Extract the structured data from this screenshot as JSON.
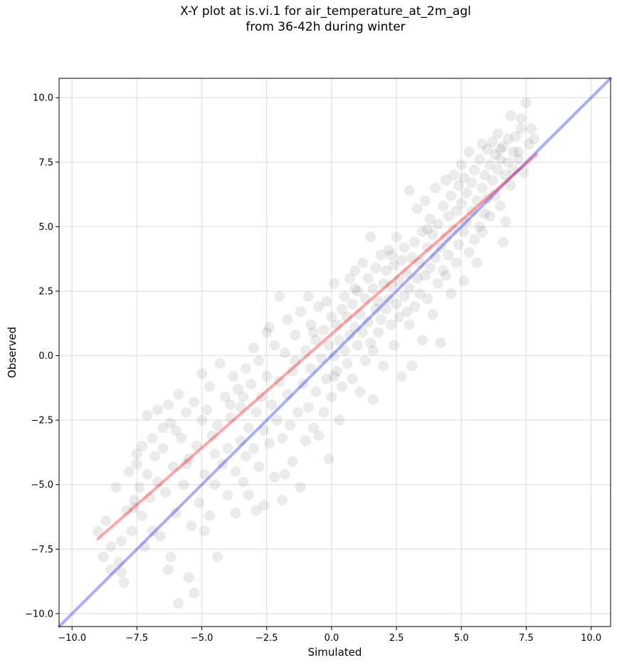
{
  "title_line1": "X-Y plot at is.vi.1 for air_temperature_at_2m_agl",
  "title_line2": "from 36-42h during winter",
  "chart_data": {
    "type": "scatter",
    "xlabel": "Simulated",
    "ylabel": "Observed",
    "xlim": [
      -10.5,
      10.75
    ],
    "ylim": [
      -10.5,
      10.75
    ],
    "xticks": [
      "−10.0",
      "−7.5",
      "−5.0",
      "−2.5",
      "0.0",
      "2.5",
      "5.0",
      "7.5",
      "10.0"
    ],
    "yticks": [
      "−10.0",
      "−7.5",
      "−5.0",
      "−2.5",
      "0.0",
      "2.5",
      "5.0",
      "7.5",
      "10.0"
    ],
    "grid": true,
    "point_color": "#000000",
    "point_opacity": 0.08,
    "identity_line": {
      "color": "#0000ff",
      "from": [
        -10.5,
        -10.5
      ],
      "to": [
        10.75,
        10.75
      ]
    },
    "fit_line": {
      "color": "#ff0000",
      "from": [
        -9.0,
        -7.1
      ],
      "to": [
        7.9,
        7.8
      ]
    },
    "points": [
      [
        -9.0,
        -6.8
      ],
      [
        -8.8,
        -7.8
      ],
      [
        -8.7,
        -6.4
      ],
      [
        -8.5,
        -8.3
      ],
      [
        -8.5,
        -7.4
      ],
      [
        -8.3,
        -5.1
      ],
      [
        -8.2,
        -8.0
      ],
      [
        -8.1,
        -8.4
      ],
      [
        -8.1,
        -7.2
      ],
      [
        -8.0,
        -8.8
      ],
      [
        -7.9,
        -6.0
      ],
      [
        -7.8,
        -4.5
      ],
      [
        -7.7,
        -6.8
      ],
      [
        -7.6,
        -5.6
      ],
      [
        -7.5,
        -3.8
      ],
      [
        -7.5,
        -4.2
      ],
      [
        -7.4,
        -5.1
      ],
      [
        -7.3,
        -3.5
      ],
      [
        -7.3,
        -6.2
      ],
      [
        -7.2,
        -7.4
      ],
      [
        -7.1,
        -2.3
      ],
      [
        -7.1,
        -4.6
      ],
      [
        -7.0,
        -5.5
      ],
      [
        -6.9,
        -6.8
      ],
      [
        -6.8,
        -3.9
      ],
      [
        -6.7,
        -4.9
      ],
      [
        -6.7,
        -2.1
      ],
      [
        -6.6,
        -7.0
      ],
      [
        -6.5,
        -2.8
      ],
      [
        -6.5,
        -3.6
      ],
      [
        -6.4,
        -5.3
      ],
      [
        -6.3,
        -8.3
      ],
      [
        -6.3,
        -1.9
      ],
      [
        -6.2,
        -2.6
      ],
      [
        -6.2,
        -7.8
      ],
      [
        -6.1,
        -4.3
      ],
      [
        -6.0,
        -6.1
      ],
      [
        -5.9,
        -9.6
      ],
      [
        -5.9,
        -1.5
      ],
      [
        -5.8,
        -3.2
      ],
      [
        -5.7,
        -5.0
      ],
      [
        -5.6,
        -2.2
      ],
      [
        -5.5,
        -8.6
      ],
      [
        -5.5,
        -4.0
      ],
      [
        -5.4,
        -6.6
      ],
      [
        -5.3,
        -1.8
      ],
      [
        -5.3,
        -9.2
      ],
      [
        -5.2,
        -3.5
      ],
      [
        -5.1,
        -5.7
      ],
      [
        -5.0,
        -2.5
      ],
      [
        -5.0,
        -0.7
      ],
      [
        -4.9,
        -4.6
      ],
      [
        -4.8,
        -2.1
      ],
      [
        -4.7,
        -6.2
      ],
      [
        -4.7,
        -1.2
      ],
      [
        -4.6,
        -3.1
      ],
      [
        -4.5,
        -5.0
      ],
      [
        -4.4,
        -2.7
      ],
      [
        -4.4,
        -7.8
      ],
      [
        -4.3,
        -0.3
      ],
      [
        -4.2,
        -4.2
      ],
      [
        -4.1,
        -1.6
      ],
      [
        -4.0,
        -5.4
      ],
      [
        -4.0,
        -3.6
      ],
      [
        -3.9,
        -2.4
      ],
      [
        -3.8,
        -0.8
      ],
      [
        -3.7,
        -4.5
      ],
      [
        -3.7,
        -6.1
      ],
      [
        -3.6,
        -1.3
      ],
      [
        -3.5,
        -2.0
      ],
      [
        -3.5,
        -3.3
      ],
      [
        -3.4,
        -1.6
      ],
      [
        -3.4,
        -4.9
      ],
      [
        -3.3,
        -0.5
      ],
      [
        -3.2,
        -2.8
      ],
      [
        -3.2,
        -5.4
      ],
      [
        -3.1,
        -1.1
      ],
      [
        -3.0,
        0.3
      ],
      [
        -3.0,
        -3.6
      ],
      [
        -2.9,
        -2.2
      ],
      [
        -2.8,
        -0.2
      ],
      [
        -2.8,
        -4.3
      ],
      [
        -2.7,
        -1.6
      ],
      [
        -2.6,
        -2.9
      ],
      [
        -2.6,
        -5.8
      ],
      [
        -2.5,
        -0.8
      ],
      [
        -2.4,
        1.1
      ],
      [
        -2.4,
        -3.4
      ],
      [
        -2.3,
        -1.9
      ],
      [
        -2.2,
        0.4
      ],
      [
        -2.2,
        -4.7
      ],
      [
        -2.1,
        -2.5
      ],
      [
        -2.0,
        -1.0
      ],
      [
        -2.0,
        2.3
      ],
      [
        -1.9,
        -3.2
      ],
      [
        -1.9,
        -5.6
      ],
      [
        -1.8,
        0.1
      ],
      [
        -1.7,
        -1.5
      ],
      [
        -1.7,
        1.4
      ],
      [
        -1.6,
        -2.7
      ],
      [
        -1.5,
        -4.1
      ],
      [
        -1.5,
        -0.6
      ],
      [
        -1.4,
        0.8
      ],
      [
        -1.3,
        -2.2
      ],
      [
        -1.2,
        -5.1
      ],
      [
        -1.2,
        1.7
      ],
      [
        -1.1,
        -1.1
      ],
      [
        -1.0,
        -3.3
      ],
      [
        -1.0,
        0.2
      ],
      [
        -0.9,
        2.3
      ],
      [
        -0.9,
        -2.0
      ],
      [
        -0.8,
        -0.5
      ],
      [
        -0.8,
        1.2
      ],
      [
        -0.7,
        -2.8
      ],
      [
        -0.6,
        0.6
      ],
      [
        -0.6,
        -1.4
      ],
      [
        -0.5,
        1.9
      ],
      [
        -0.5,
        -3.1
      ],
      [
        -0.4,
        -0.1
      ],
      [
        -0.3,
        1.0
      ],
      [
        -0.3,
        -2.2
      ],
      [
        -0.2,
        2.1
      ],
      [
        -0.2,
        -0.9
      ],
      [
        -0.1,
        0.4
      ],
      [
        -0.1,
        -4.0
      ],
      [
        0.0,
        1.5
      ],
      [
        0.0,
        -1.6
      ],
      [
        0.1,
        0.0
      ],
      [
        0.1,
        2.8
      ],
      [
        0.2,
        -0.6
      ],
      [
        0.2,
        1.2
      ],
      [
        0.3,
        -2.5
      ],
      [
        0.3,
        0.6
      ],
      [
        0.4,
        1.8
      ],
      [
        0.4,
        -1.2
      ],
      [
        0.5,
        2.3
      ],
      [
        0.5,
        0.2
      ],
      [
        0.6,
        -0.3
      ],
      [
        0.6,
        1.5
      ],
      [
        0.7,
        3.0
      ],
      [
        0.7,
        0.8
      ],
      [
        0.8,
        -0.9
      ],
      [
        0.8,
        2.0
      ],
      [
        0.9,
        1.1
      ],
      [
        0.9,
        3.3
      ],
      [
        1.0,
        0.4
      ],
      [
        1.0,
        2.5
      ],
      [
        1.1,
        -1.4
      ],
      [
        1.1,
        1.6
      ],
      [
        1.2,
        3.6
      ],
      [
        1.2,
        0.9
      ],
      [
        1.3,
        2.2
      ],
      [
        1.3,
        -0.2
      ],
      [
        1.4,
        1.3
      ],
      [
        1.4,
        3.0
      ],
      [
        1.5,
        4.6
      ],
      [
        1.5,
        0.5
      ],
      [
        1.6,
        2.6
      ],
      [
        1.6,
        -1.7
      ],
      [
        1.7,
        1.8
      ],
      [
        1.7,
        3.4
      ],
      [
        1.8,
        0.9
      ],
      [
        1.8,
        2.1
      ],
      [
        1.9,
        3.9
      ],
      [
        1.9,
        1.4
      ],
      [
        2.0,
        2.8
      ],
      [
        2.0,
        -0.4
      ],
      [
        2.1,
        1.8
      ],
      [
        2.1,
        3.3
      ],
      [
        2.2,
        2.2
      ],
      [
        2.2,
        4.1
      ],
      [
        2.3,
        1.2
      ],
      [
        2.3,
        2.7
      ],
      [
        2.4,
        0.4
      ],
      [
        2.4,
        3.5
      ],
      [
        2.5,
        2.0
      ],
      [
        2.5,
        4.6
      ],
      [
        2.6,
        1.5
      ],
      [
        2.6,
        2.9
      ],
      [
        2.7,
        3.7
      ],
      [
        2.7,
        -0.8
      ],
      [
        2.8,
        2.3
      ],
      [
        2.8,
        4.2
      ],
      [
        2.9,
        1.7
      ],
      [
        2.9,
        3.2
      ],
      [
        3.0,
        6.4
      ],
      [
        3.0,
        2.6
      ],
      [
        3.1,
        -0.4
      ],
      [
        3.1,
        3.8
      ],
      [
        3.2,
        1.9
      ],
      [
        3.2,
        4.4
      ],
      [
        3.3,
        3.0
      ],
      [
        3.3,
        5.7
      ],
      [
        3.4,
        2.4
      ],
      [
        3.4,
        3.6
      ],
      [
        3.5,
        4.8
      ],
      [
        3.5,
        0.6
      ],
      [
        3.6,
        3.1
      ],
      [
        3.6,
        6.0
      ],
      [
        3.7,
        2.2
      ],
      [
        3.7,
        4.2
      ],
      [
        3.8,
        5.3
      ],
      [
        3.8,
        3.4
      ],
      [
        3.9,
        1.6
      ],
      [
        3.9,
        4.7
      ],
      [
        4.0,
        3.8
      ],
      [
        4.0,
        6.5
      ],
      [
        4.1,
        2.8
      ],
      [
        4.1,
        5.1
      ],
      [
        4.2,
        4.2
      ],
      [
        4.2,
        0.5
      ],
      [
        4.3,
        5.8
      ],
      [
        4.3,
        3.3
      ],
      [
        4.4,
        4.6
      ],
      [
        4.4,
        6.8
      ],
      [
        4.5,
        3.9
      ],
      [
        4.5,
        5.4
      ],
      [
        4.6,
        2.4
      ],
      [
        4.6,
        6.2
      ],
      [
        4.7,
        4.9
      ],
      [
        4.7,
        7.0
      ],
      [
        4.8,
        3.6
      ],
      [
        4.8,
        5.6
      ],
      [
        4.9,
        6.6
      ],
      [
        4.9,
        4.3
      ],
      [
        5.0,
        5.9
      ],
      [
        5.0,
        7.4
      ],
      [
        5.1,
        4.8
      ],
      [
        5.1,
        2.9
      ],
      [
        5.2,
        6.3
      ],
      [
        5.2,
        5.2
      ],
      [
        5.3,
        7.9
      ],
      [
        5.3,
        4.0
      ],
      [
        5.4,
        6.7
      ],
      [
        5.4,
        5.6
      ],
      [
        5.5,
        7.2
      ],
      [
        5.5,
        4.5
      ],
      [
        5.6,
        6.0
      ],
      [
        5.6,
        3.6
      ],
      [
        5.7,
        7.6
      ],
      [
        5.7,
        5.0
      ],
      [
        5.8,
        6.5
      ],
      [
        5.8,
        8.2
      ],
      [
        5.9,
        5.5
      ],
      [
        5.9,
        7.0
      ],
      [
        6.0,
        6.1
      ],
      [
        6.0,
        8.0
      ],
      [
        6.1,
        7.4
      ],
      [
        6.1,
        5.4
      ],
      [
        6.2,
        6.8
      ],
      [
        6.2,
        8.3
      ],
      [
        6.3,
        7.8
      ],
      [
        6.3,
        6.2
      ],
      [
        6.4,
        7.2
      ],
      [
        6.4,
        8.6
      ],
      [
        6.5,
        5.8
      ],
      [
        6.5,
        7.6
      ],
      [
        6.6,
        4.4
      ],
      [
        6.6,
        8.1
      ],
      [
        6.7,
        7.0
      ],
      [
        6.7,
        5.2
      ],
      [
        6.8,
        7.5
      ],
      [
        6.8,
        8.4
      ],
      [
        6.9,
        6.6
      ],
      [
        6.9,
        9.3
      ],
      [
        7.0,
        7.9
      ],
      [
        7.0,
        7.2
      ],
      [
        7.1,
        8.5
      ],
      [
        7.2,
        7.6
      ],
      [
        7.3,
        8.8
      ],
      [
        7.3,
        9.2
      ],
      [
        7.4,
        7.1
      ],
      [
        7.5,
        9.8
      ],
      [
        7.6,
        8.2
      ],
      [
        7.7,
        8.8
      ],
      [
        7.8,
        8.4
      ],
      [
        -7.6,
        -5.9
      ],
      [
        -6.9,
        -3.2
      ],
      [
        -6.0,
        -2.9
      ],
      [
        -5.6,
        -4.2
      ],
      [
        -4.9,
        -6.8
      ],
      [
        -4.5,
        -3.8
      ],
      [
        -3.9,
        -1.9
      ],
      [
        -3.3,
        -3.9
      ],
      [
        -2.9,
        -6.0
      ],
      [
        -2.5,
        0.9
      ],
      [
        -1.8,
        -4.6
      ],
      [
        -1.4,
        -0.2
      ],
      [
        -0.7,
        0.9
      ],
      [
        0.1,
        -0.8
      ],
      [
        0.9,
        2.6
      ],
      [
        1.6,
        0.2
      ],
      [
        2.3,
        3.9
      ],
      [
        3.0,
        1.2
      ],
      [
        3.7,
        4.9
      ],
      [
        4.4,
        3.1
      ],
      [
        5.1,
        6.9
      ],
      [
        5.8,
        4.8
      ],
      [
        6.5,
        8.0
      ],
      [
        7.2,
        7.9
      ]
    ]
  }
}
